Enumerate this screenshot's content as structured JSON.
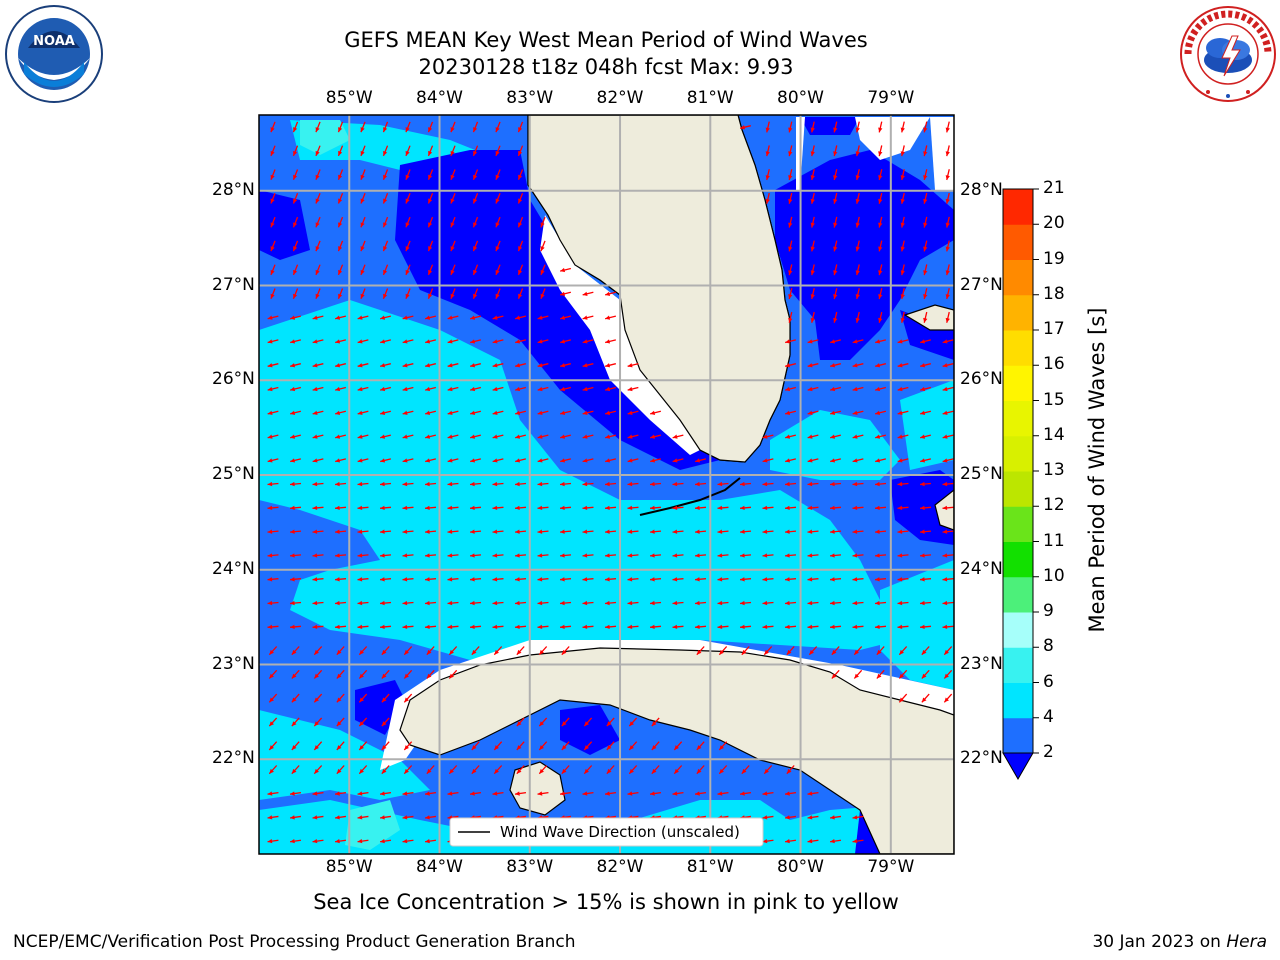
{
  "title": {
    "line1": "GEFS MEAN Key West Mean Period of Wind Waves",
    "line2": "20230128 t18z 048h fcst   Max: 9.93"
  },
  "logos": {
    "left": {
      "icon": "noaa-logo",
      "text": "NOAA"
    },
    "right": {
      "icon": "nws-logo",
      "text": "NATIONAL WEATHER SERVICE"
    }
  },
  "map": {
    "lon_labels": [
      "85°W",
      "84°W",
      "83°W",
      "82°W",
      "81°W",
      "80°W",
      "79°W"
    ],
    "lat_labels": [
      "28°N",
      "27°N",
      "26°N",
      "25°N",
      "24°N",
      "23°N",
      "22°N"
    ],
    "lon_range": [
      -86.0,
      -78.3
    ],
    "lat_range": [
      21.0,
      28.8
    ],
    "legend_label": "Wind Wave Direction (unscaled)",
    "arrow_color": "#ff0000",
    "land_color": "#eeecdc",
    "grid_color": "#b0b0b0"
  },
  "colorbar": {
    "title": "Mean Period of Wind Waves [s]",
    "ticks": [
      "2",
      "4",
      "6",
      "8",
      "9",
      "10",
      "11",
      "12",
      "13",
      "14",
      "15",
      "16",
      "17",
      "18",
      "19",
      "20",
      "21"
    ],
    "colors": [
      "#1e6fff",
      "#00e5ff",
      "#38f2f0",
      "#a6fffa",
      "#4cf07a",
      "#12e000",
      "#6ae41a",
      "#bce600",
      "#d8f000",
      "#e8f500",
      "#fff500",
      "#ffdd00",
      "#ffb300",
      "#ff8a00",
      "#ff5a00",
      "#ff2800",
      "#ff0000"
    ],
    "under_color": "#0000ff"
  },
  "sea_ice_note": "Sea Ice Concentration > 15% is shown in pink to yellow",
  "footer": {
    "left": "NCEP/EMC/Verification Post Processing Product Generation Branch",
    "right_prefix": "30 Jan 2023 on ",
    "right_emph": "Hera"
  }
}
